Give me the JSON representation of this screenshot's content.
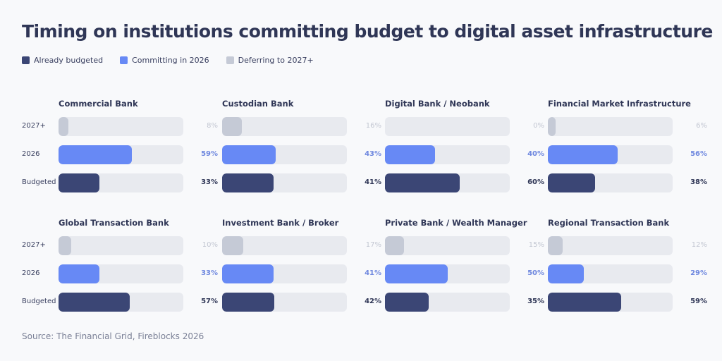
{
  "chart_data": {
    "type": "bar",
    "orientation": "horizontal",
    "title": "Timing on institutions committing budget to digital asset infrastructure",
    "source": "Source: The Financial Grid, Fireblocks 2026",
    "legend": [
      {
        "name": "Already budgeted",
        "color": "#3b4675"
      },
      {
        "name": "Committing in 2026",
        "color": "#6789f5"
      },
      {
        "name": "Deferring to 2027+",
        "color": "#c5cad6"
      }
    ],
    "legend_placement": "top-left",
    "row_labels": [
      "2027+",
      "2026",
      "Budgeted"
    ],
    "row_colors": [
      "#c5cad6",
      "#6789f5",
      "#3b4675"
    ],
    "value_label_colors": [
      "#c3c7d2",
      "#6f88df",
      "#2f3656"
    ],
    "xlim": [
      0,
      100
    ],
    "unit": "%",
    "panels": [
      {
        "name": "Commercial Bank",
        "values": [
          8,
          59,
          33
        ]
      },
      {
        "name": "Custodian Bank",
        "values": [
          16,
          43,
          41
        ]
      },
      {
        "name": "Digital Bank / Neobank",
        "values": [
          0,
          40,
          60
        ]
      },
      {
        "name": "Financial Market Infrastructure",
        "values": [
          6,
          56,
          38
        ]
      },
      {
        "name": "Global Transaction Bank",
        "values": [
          10,
          33,
          57
        ]
      },
      {
        "name": "Investment Bank / Broker",
        "values": [
          17,
          41,
          42
        ]
      },
      {
        "name": "Private Bank / Wealth Manager",
        "values": [
          15,
          50,
          35
        ]
      },
      {
        "name": "Regional Transaction Bank",
        "values": [
          12,
          29,
          59
        ]
      }
    ]
  }
}
